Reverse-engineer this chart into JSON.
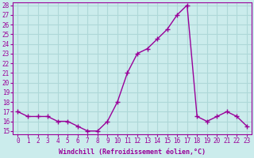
{
  "hours": [
    0,
    1,
    2,
    3,
    4,
    5,
    6,
    7,
    8,
    9,
    10,
    11,
    12,
    13,
    14,
    15,
    16,
    17,
    18,
    19,
    20,
    21,
    22,
    23
  ],
  "values": [
    17.0,
    16.5,
    16.5,
    16.5,
    16.0,
    16.0,
    15.5,
    15.0,
    15.0,
    16.0,
    18.0,
    21.0,
    23.0,
    23.5,
    24.5,
    25.5,
    27.0,
    28.0,
    16.5,
    16.0,
    16.5,
    17.0,
    16.5,
    15.5
  ],
  "ylim_min": 15,
  "ylim_max": 28,
  "ytick_min": 15,
  "ytick_max": 28,
  "xtick_labels": [
    "0",
    "1",
    "2",
    "3",
    "4",
    "5",
    "6",
    "7",
    "8",
    "9",
    "10",
    "11",
    "12",
    "13",
    "14",
    "15",
    "16",
    "17",
    "18",
    "19",
    "20",
    "21",
    "22",
    "23"
  ],
  "xlabel": "Windchill (Refroidissement éolien,°C)",
  "line_color": "#990099",
  "marker": "+",
  "bg_color": "#cbecec",
  "grid_color": "#aed8d8",
  "axis_color": "#990099",
  "tick_fontsize": 5.5,
  "xlabel_fontsize": 6.0,
  "linewidth": 1.0,
  "markersize": 4,
  "markeredgewidth": 1.0
}
